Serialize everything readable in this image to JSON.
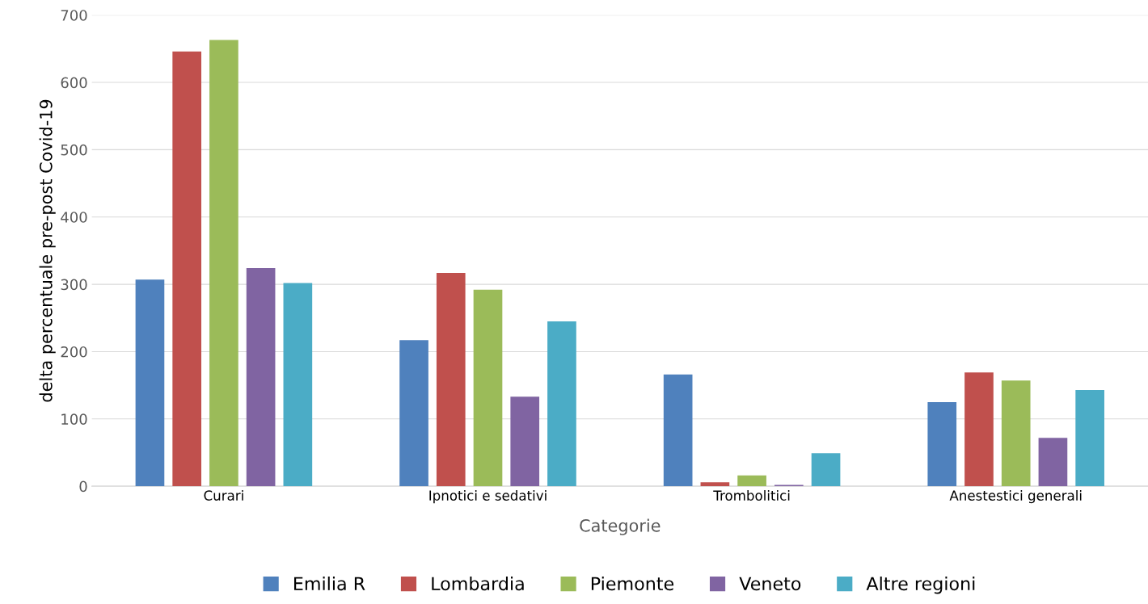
{
  "chart_data": {
    "type": "bar",
    "xlabel": "Categorie",
    "ylabel": "delta percentuale pre-post Covid-19",
    "categories": [
      "Curari",
      "Ipnotici e sedativi",
      "Trombolitici",
      "Anestestici generali"
    ],
    "series": [
      {
        "name": "Emilia R",
        "color": "#4f81bd",
        "values": [
          307,
          217,
          166,
          125
        ]
      },
      {
        "name": "Lombardia",
        "color": "#c0504d",
        "values": [
          646,
          317,
          6,
          169
        ]
      },
      {
        "name": "Piemonte",
        "color": "#9bbb59",
        "values": [
          663,
          292,
          16,
          157
        ]
      },
      {
        "name": "Veneto",
        "color": "#8064a2",
        "values": [
          324,
          133,
          2,
          72
        ]
      },
      {
        "name": "Altre regioni",
        "color": "#4bacc6",
        "values": [
          302,
          245,
          49,
          143
        ]
      }
    ],
    "ylim": [
      0,
      700
    ],
    "yticks": [
      0,
      100,
      200,
      300,
      400,
      500,
      600,
      700
    ],
    "grid": "y",
    "legend": "bottom"
  }
}
